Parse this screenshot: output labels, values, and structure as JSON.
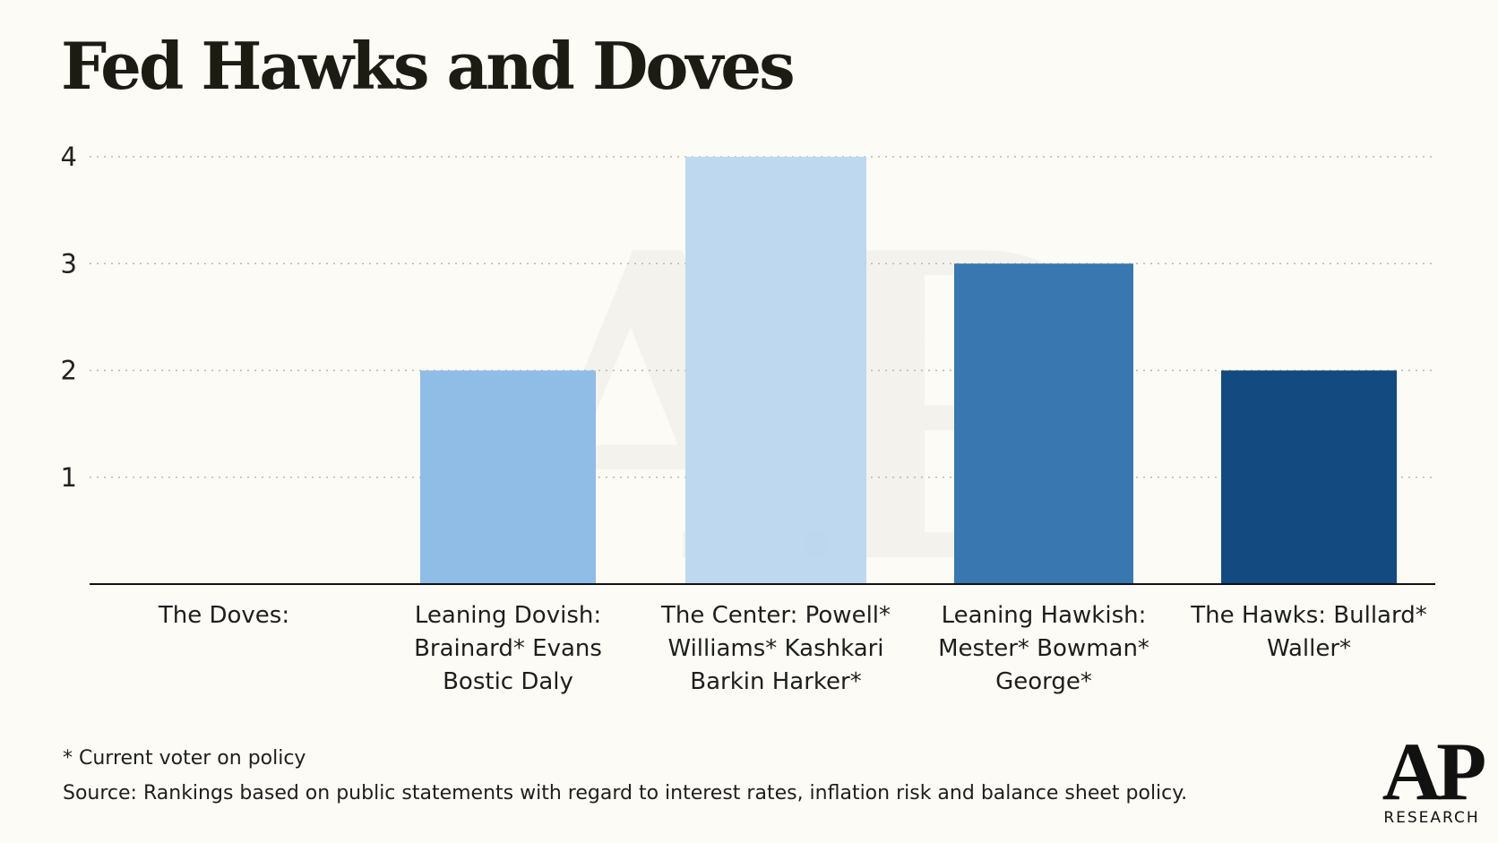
{
  "title": "Fed Hawks and Doves",
  "chart_data": {
    "type": "bar",
    "title": "Fed Hawks and Doves",
    "xlabel": "",
    "ylabel": "",
    "ylim": [
      0,
      4
    ],
    "yticks": [
      1,
      2,
      3,
      4
    ],
    "grid": true,
    "categories": [
      "The Doves:",
      "Leaning Dovish: Brainard* Evans Bostic Daly",
      "The Center: Powell* Williams* Kashkari Barkin Harker*",
      "Leaning Hawkish: Mester* Bowman* George*",
      "The Hawks: Bullard* Waller*"
    ],
    "category_lines": [
      [
        "The Doves:"
      ],
      [
        "Leaning Dovish:",
        "Brainard* Evans",
        "Bostic Daly"
      ],
      [
        "The Center: Powell*",
        "Williams* Kashkari",
        "Barkin Harker*"
      ],
      [
        "Leaning Hawkish:",
        "Mester* Bowman*",
        "George*"
      ],
      [
        "The Hawks: Bullard*",
        "Waller*"
      ]
    ],
    "values": [
      0,
      2,
      4,
      3,
      2
    ],
    "colors": [
      "#8fbde6",
      "#8fbde6",
      "#bad6ef",
      "#3877b0",
      "#134a80"
    ]
  },
  "footnotes": {
    "voter_note": "* Current voter on policy",
    "source": "Source: Rankings based on public statements with regard to interest rates, inflation risk and balance sheet policy."
  },
  "logo": {
    "main": "AP",
    "sub": "RESEARCH"
  }
}
